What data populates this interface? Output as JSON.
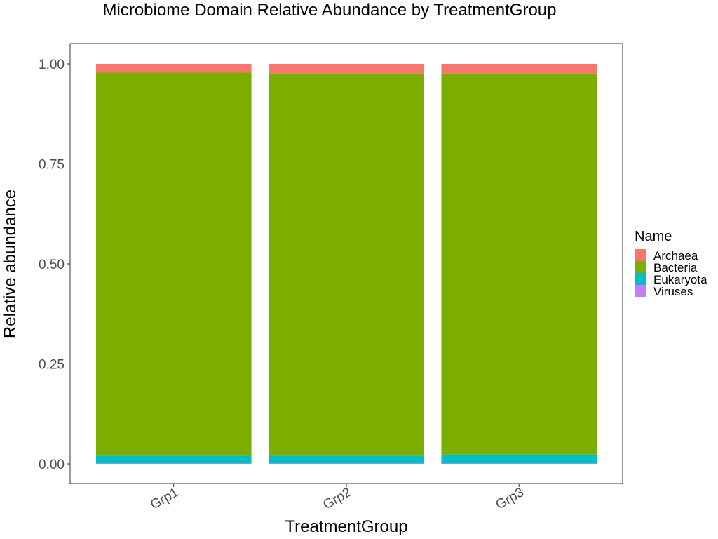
{
  "chart_data": {
    "type": "bar",
    "stacked": true,
    "title": "Microbiome Domain Relative Abundance by TreatmentGroup",
    "xlabel": "TreatmentGroup",
    "ylabel": "Relative abundance",
    "ylim": [
      0,
      1.05
    ],
    "yticks": [
      0.0,
      0.25,
      0.5,
      0.75,
      1.0
    ],
    "ytick_labels": [
      "0.00",
      "0.25",
      "0.50",
      "0.75",
      "1.00"
    ],
    "categories": [
      "Grp1",
      "Grp2",
      "Grp3"
    ],
    "grid": false,
    "legend": {
      "title": "Name",
      "position": "right"
    },
    "series": [
      {
        "name": "Viruses",
        "color": "#C77CFF",
        "values": [
          0.001,
          0.001,
          0.001
        ]
      },
      {
        "name": "Eukaryota",
        "color": "#00BFC4",
        "values": [
          0.019,
          0.019,
          0.022
        ]
      },
      {
        "name": "Bacteria",
        "color": "#7CAE00",
        "values": [
          0.958,
          0.956,
          0.953
        ]
      },
      {
        "name": "Archaea",
        "color": "#F8766D",
        "values": [
          0.022,
          0.024,
          0.024
        ]
      }
    ],
    "legend_order": [
      "Archaea",
      "Bacteria",
      "Eukaryota",
      "Viruses"
    ]
  }
}
